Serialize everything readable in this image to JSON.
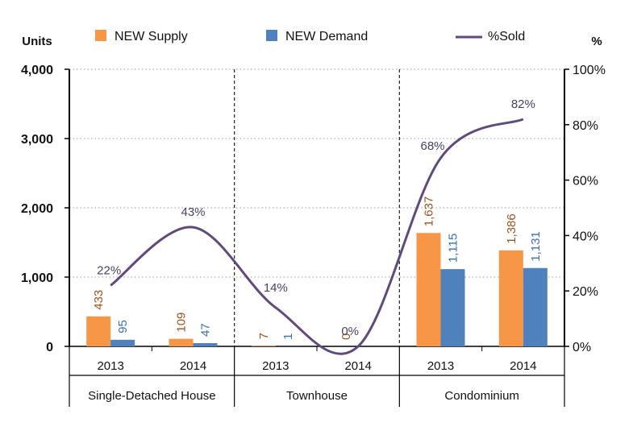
{
  "chart_data": {
    "type": "bar",
    "groups": [
      "Single-Detached House",
      "Townhouse",
      "Condominium"
    ],
    "categories": [
      "2013",
      "2014",
      "2013",
      "2014",
      "2013",
      "2014"
    ],
    "series": [
      {
        "name": "NEW Supply",
        "type": "bar",
        "axis": "left",
        "color": "#F79646",
        "values": [
          433,
          109,
          7,
          0,
          1637,
          1386
        ],
        "labels": [
          "433",
          "109",
          "7",
          "0",
          "1,637",
          "1,386"
        ]
      },
      {
        "name": "NEW Demand",
        "type": "bar",
        "axis": "left",
        "color": "#4F81BD",
        "values": [
          95,
          47,
          1,
          0,
          1115,
          1131
        ],
        "labels": [
          "95",
          "47",
          "1",
          "",
          "1,115",
          "1,131"
        ]
      },
      {
        "name": "%Sold",
        "type": "line",
        "axis": "right",
        "color": "#604A7B",
        "values": [
          22,
          43,
          14,
          0,
          68,
          82
        ],
        "labels": [
          "22%",
          "43%",
          "14%",
          "0%",
          "68%",
          "82%"
        ]
      }
    ],
    "left_axis": {
      "label": "Units",
      "min": 0,
      "max": 4000,
      "ticks": [
        0,
        1000,
        2000,
        3000,
        4000
      ],
      "tick_labels": [
        "0",
        "1,000",
        "2,000",
        "3,000",
        "4,000"
      ]
    },
    "right_axis": {
      "label": "%",
      "min": 0,
      "max": 100,
      "ticks": [
        0,
        20,
        40,
        60,
        80,
        100
      ],
      "tick_labels": [
        "0%",
        "20%",
        "40%",
        "60%",
        "80%",
        "100%"
      ]
    },
    "grid": "dashed horizontal",
    "legend_position": "top"
  }
}
